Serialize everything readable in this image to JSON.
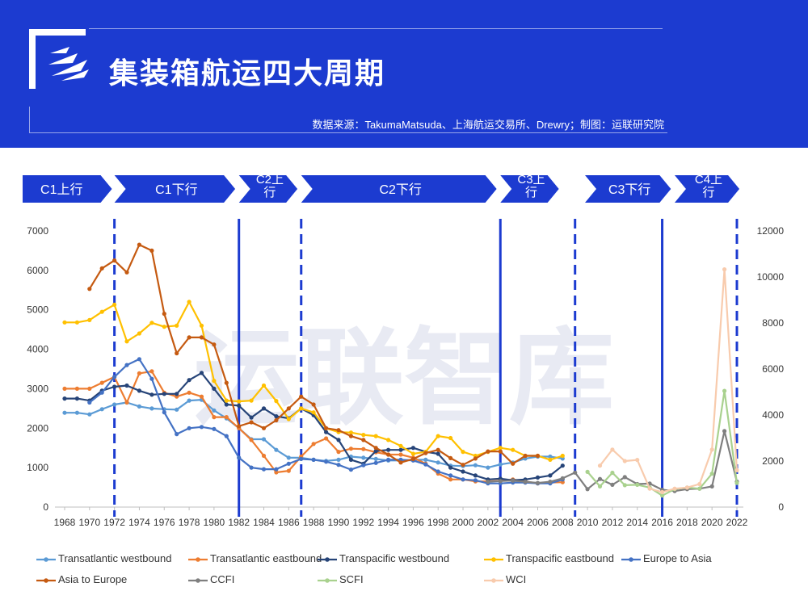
{
  "header": {
    "title": "集装箱航运四大周期",
    "source": "数据来源：TakumaMatsuda、上海航运交易所、Drewry；制图：运联研究院",
    "watermark": "运联智库"
  },
  "phases": [
    {
      "label": "C1上行",
      "start": 1968,
      "end": 1971.8,
      "first": true
    },
    {
      "label": "C1下行",
      "start": 1972,
      "end": 1981.7
    },
    {
      "label": "C2上行",
      "start": 1982,
      "end": 1986.7
    },
    {
      "label": "C2下行",
      "start": 1987,
      "end": 2002.7
    },
    {
      "label": "C3上行",
      "start": 2003,
      "end": 2007.7
    },
    {
      "label": "C3下行",
      "start": 2009.8,
      "end": 2016.7
    },
    {
      "label": "C4上行",
      "start": 2017,
      "end": 2022.2
    }
  ],
  "phase_wrap": {
    "C2上行": [
      "C2上",
      "行"
    ],
    "C3上行": [
      "C3上",
      "行"
    ],
    "C4上行": [
      "C4上",
      "行"
    ]
  },
  "dividers": [
    {
      "year": 1972,
      "style": "dashed"
    },
    {
      "year": 1982,
      "style": "solid"
    },
    {
      "year": 1987,
      "style": "dashed"
    },
    {
      "year": 2003,
      "style": "solid"
    },
    {
      "year": 2009,
      "style": "dashed"
    },
    {
      "year": 2016,
      "style": "solid"
    },
    {
      "year": 2022,
      "style": "dashed"
    }
  ],
  "chart_data": {
    "type": "line",
    "title": "",
    "xlim": [
      1968,
      2022
    ],
    "x_ticks": [
      1968,
      1970,
      1972,
      1974,
      1976,
      1978,
      1980,
      1982,
      1984,
      1986,
      1988,
      1990,
      1992,
      1994,
      1996,
      1998,
      2000,
      2002,
      2004,
      2006,
      2008,
      2010,
      2012,
      2014,
      2016,
      2018,
      2020,
      2022
    ],
    "y_left": {
      "lim": [
        0,
        7000
      ],
      "ticks": [
        0,
        1000,
        2000,
        3000,
        4000,
        5000,
        6000,
        7000
      ]
    },
    "y_right": {
      "lim": [
        0,
        12000
      ],
      "ticks": [
        0,
        2000,
        4000,
        6000,
        8000,
        10000,
        12000
      ]
    },
    "grid": false,
    "legend": "bottom",
    "series": [
      {
        "name": "Transatlantic westbound",
        "color": "#5b9bd5",
        "axis": "left",
        "x_start": 1968,
        "values": [
          2390,
          2390,
          2350,
          2480,
          2600,
          2650,
          2550,
          2500,
          2480,
          2470,
          2700,
          2720,
          2450,
          2250,
          2000,
          1720,
          1720,
          1450,
          1250,
          1250,
          1200,
          1170,
          1200,
          1280,
          1250,
          1220,
          1180,
          1180,
          1200,
          1200,
          1130,
          1050,
          1040,
          1060,
          1000,
          1080,
          1130,
          1230,
          1280,
          1280,
          1230
        ]
      },
      {
        "name": "Transatlantic eastbound",
        "color": "#ed7d31",
        "axis": "left",
        "x_start": 1968,
        "values": [
          3000,
          3000,
          3000,
          3150,
          3300,
          2650,
          3390,
          3440,
          2900,
          2800,
          2900,
          2800,
          2280,
          2280,
          2000,
          1700,
          1300,
          880,
          920,
          1280,
          1600,
          1740,
          1400,
          1480,
          1470,
          1390,
          1330,
          1330,
          1250,
          1100,
          850,
          700,
          700,
          650,
          650,
          670,
          700,
          650,
          600,
          620,
          630
        ]
      },
      {
        "name": "Transpacific westbound",
        "color": "#264478",
        "axis": "left",
        "x_start": 1968,
        "values": [
          2750,
          2750,
          2700,
          2950,
          3050,
          3080,
          2950,
          2850,
          2870,
          2870,
          3220,
          3400,
          3000,
          2600,
          2570,
          2270,
          2500,
          2300,
          2250,
          2500,
          2330,
          1900,
          1700,
          1200,
          1100,
          1420,
          1450,
          1450,
          1500,
          1400,
          1350,
          1000,
          900,
          800,
          700,
          720,
          680,
          700,
          750,
          800,
          1050
        ]
      },
      {
        "name": "Transpacific eastbound",
        "color": "#ffc000",
        "axis": "left",
        "x_start": 1968,
        "values": [
          4680,
          4680,
          4740,
          4950,
          5130,
          4200,
          4400,
          4670,
          4570,
          4600,
          5200,
          4600,
          3200,
          2700,
          2680,
          2700,
          3080,
          2690,
          2230,
          2500,
          2400,
          2000,
          1900,
          1890,
          1830,
          1800,
          1700,
          1550,
          1350,
          1400,
          1800,
          1750,
          1400,
          1300,
          1400,
          1500,
          1450,
          1300,
          1300,
          1200,
          1300
        ]
      },
      {
        "name": "Europe to Asia",
        "color": "#4472c4",
        "axis": "left",
        "x_start": 1968,
        "values": [
          null,
          null,
          2650,
          2900,
          3300,
          3600,
          3750,
          3250,
          2400,
          1850,
          2000,
          2030,
          1980,
          1800,
          1250,
          1000,
          960,
          960,
          1100,
          1220,
          1200,
          1150,
          1070,
          950,
          1060,
          1120,
          1200,
          1200,
          1180,
          1080,
          900,
          800,
          700,
          680,
          600,
          600,
          620,
          620,
          600,
          600,
          700
        ]
      },
      {
        "name": "Asia to Europe",
        "color": "#c55a11",
        "axis": "left",
        "x_start": 1968,
        "values": [
          null,
          null,
          5530,
          6050,
          6250,
          5950,
          6650,
          6500,
          4900,
          3900,
          4300,
          4300,
          4120,
          3150,
          2050,
          2150,
          2000,
          2200,
          2500,
          2800,
          2600,
          2000,
          1950,
          1800,
          1700,
          1500,
          1330,
          1130,
          1220,
          1370,
          1450,
          1240,
          1070,
          1230,
          1410,
          1410,
          1100,
          1300,
          1300,
          null,
          null
        ]
      },
      {
        "name": "CCFI",
        "color": "#7f7f7f",
        "axis": "right",
        "x_start": 2002,
        "values": [
          1100,
          1130,
          1150,
          1100,
          1050,
          1100,
          1250,
          1500,
          780,
          1220,
          970,
          1300,
          1000,
          1020,
          750,
          700,
          780,
          800,
          900,
          3300,
          1100
        ]
      },
      {
        "name": "SCFI",
        "color": "#a9d18e",
        "axis": "right",
        "x_start": 2009,
        "values": [
          null,
          1530,
          900,
          1490,
          950,
          970,
          850,
          500,
          780,
          850,
          800,
          1450,
          5050,
          1050
        ]
      },
      {
        "name": "WCI",
        "color": "#f8cbad",
        "axis": "right",
        "x_start": 2009,
        "values": [
          null,
          null,
          1800,
          2500,
          2000,
          2050,
          800,
          650,
          800,
          850,
          1000,
          2500,
          10330,
          1600
        ]
      }
    ]
  }
}
